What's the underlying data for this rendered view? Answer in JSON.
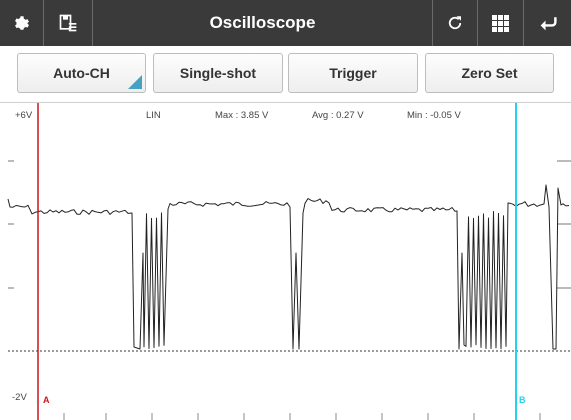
{
  "app": {
    "title": "Oscilloscope"
  },
  "toolbar": {
    "left_icons": [
      "gear-icon",
      "save-list-icon"
    ],
    "right_icons": [
      "refresh-icon",
      "grid-icon",
      "back-icon"
    ]
  },
  "buttons": {
    "auto_ch": "Auto-CH",
    "single_shot": "Single-shot",
    "trigger": "Trigger",
    "zero_set": "Zero Set"
  },
  "scope": {
    "top_scale": "+6V",
    "bottom_scale": "-2V",
    "mode": "LIN",
    "max": "Max : 3.85 V",
    "avg": "Avg : 0.27 V",
    "min": "Min : -0.05 V",
    "cursor_a": "A",
    "cursor_b": "B"
  },
  "colors": {
    "topbar": "#3a3a3a",
    "cursor_a": "#d0121b",
    "cursor_b": "#22d3ee",
    "trace": "#222222",
    "accent": "#46a2c4"
  }
}
